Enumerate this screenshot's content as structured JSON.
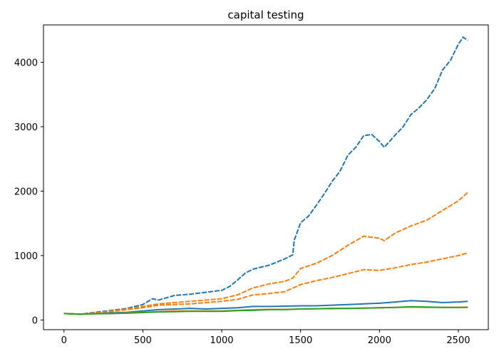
{
  "chart_data": {
    "type": "line",
    "title": "capital testing",
    "xlabel": "",
    "ylabel": "",
    "xlim": [
      -130,
      2690
    ],
    "ylim": [
      -150,
      4580
    ],
    "xticks": [
      0,
      500,
      1000,
      1500,
      2000,
      2500
    ],
    "yticks": [
      0,
      1000,
      2000,
      3000,
      4000
    ],
    "grid": false,
    "legend": "none",
    "series": [
      {
        "color": "#1f77b4",
        "style": "dashed",
        "points": [
          [
            0,
            100
          ],
          [
            100,
            90
          ],
          [
            200,
            120
          ],
          [
            300,
            150
          ],
          [
            400,
            180
          ],
          [
            500,
            240
          ],
          [
            560,
            330
          ],
          [
            600,
            310
          ],
          [
            700,
            380
          ],
          [
            800,
            400
          ],
          [
            900,
            430
          ],
          [
            1000,
            460
          ],
          [
            1050,
            520
          ],
          [
            1100,
            620
          ],
          [
            1150,
            730
          ],
          [
            1200,
            790
          ],
          [
            1300,
            850
          ],
          [
            1400,
            950
          ],
          [
            1450,
            1010
          ],
          [
            1460,
            1240
          ],
          [
            1500,
            1510
          ],
          [
            1550,
            1610
          ],
          [
            1600,
            1780
          ],
          [
            1650,
            1960
          ],
          [
            1700,
            2150
          ],
          [
            1750,
            2310
          ],
          [
            1800,
            2560
          ],
          [
            1850,
            2680
          ],
          [
            1900,
            2860
          ],
          [
            1950,
            2880
          ],
          [
            2000,
            2770
          ],
          [
            2030,
            2680
          ],
          [
            2100,
            2870
          ],
          [
            2150,
            3000
          ],
          [
            2200,
            3190
          ],
          [
            2250,
            3290
          ],
          [
            2300,
            3420
          ],
          [
            2350,
            3590
          ],
          [
            2400,
            3880
          ],
          [
            2450,
            4030
          ],
          [
            2500,
            4280
          ],
          [
            2530,
            4390
          ],
          [
            2560,
            4340
          ]
        ]
      },
      {
        "color": "#ff7f0e",
        "style": "dashed",
        "points": [
          [
            0,
            100
          ],
          [
            100,
            90
          ],
          [
            200,
            110
          ],
          [
            300,
            140
          ],
          [
            400,
            170
          ],
          [
            500,
            210
          ],
          [
            600,
            250
          ],
          [
            700,
            270
          ],
          [
            800,
            290
          ],
          [
            900,
            310
          ],
          [
            1000,
            330
          ],
          [
            1100,
            390
          ],
          [
            1200,
            500
          ],
          [
            1300,
            560
          ],
          [
            1400,
            600
          ],
          [
            1450,
            650
          ],
          [
            1500,
            800
          ],
          [
            1600,
            880
          ],
          [
            1700,
            1000
          ],
          [
            1800,
            1160
          ],
          [
            1900,
            1300
          ],
          [
            2000,
            1270
          ],
          [
            2030,
            1230
          ],
          [
            2100,
            1350
          ],
          [
            2200,
            1460
          ],
          [
            2300,
            1550
          ],
          [
            2400,
            1700
          ],
          [
            2500,
            1850
          ],
          [
            2560,
            1980
          ]
        ]
      },
      {
        "color": "#ff7f0e",
        "style": "dashed",
        "points": [
          [
            0,
            100
          ],
          [
            100,
            90
          ],
          [
            200,
            110
          ],
          [
            300,
            130
          ],
          [
            400,
            160
          ],
          [
            500,
            190
          ],
          [
            600,
            230
          ],
          [
            700,
            240
          ],
          [
            800,
            250
          ],
          [
            900,
            270
          ],
          [
            1000,
            290
          ],
          [
            1100,
            320
          ],
          [
            1200,
            390
          ],
          [
            1300,
            410
          ],
          [
            1400,
            440
          ],
          [
            1500,
            550
          ],
          [
            1600,
            610
          ],
          [
            1700,
            660
          ],
          [
            1800,
            720
          ],
          [
            1900,
            780
          ],
          [
            2000,
            770
          ],
          [
            2100,
            810
          ],
          [
            2200,
            860
          ],
          [
            2300,
            900
          ],
          [
            2400,
            950
          ],
          [
            2500,
            1000
          ],
          [
            2560,
            1040
          ]
        ]
      },
      {
        "color": "#1f77b4",
        "style": "solid",
        "points": [
          [
            0,
            100
          ],
          [
            100,
            90
          ],
          [
            200,
            100
          ],
          [
            300,
            110
          ],
          [
            400,
            120
          ],
          [
            500,
            140
          ],
          [
            600,
            160
          ],
          [
            700,
            170
          ],
          [
            800,
            180
          ],
          [
            900,
            170
          ],
          [
            1000,
            180
          ],
          [
            1100,
            190
          ],
          [
            1200,
            210
          ],
          [
            1300,
            210
          ],
          [
            1400,
            215
          ],
          [
            1500,
            220
          ],
          [
            1600,
            220
          ],
          [
            1700,
            230
          ],
          [
            1800,
            240
          ],
          [
            1900,
            250
          ],
          [
            2000,
            260
          ],
          [
            2100,
            280
          ],
          [
            2200,
            300
          ],
          [
            2300,
            290
          ],
          [
            2400,
            270
          ],
          [
            2500,
            280
          ],
          [
            2560,
            290
          ]
        ]
      },
      {
        "color": "#ff7f0e",
        "style": "solid",
        "points": [
          [
            0,
            100
          ],
          [
            100,
            90
          ],
          [
            200,
            100
          ],
          [
            300,
            100
          ],
          [
            400,
            110
          ],
          [
            500,
            120
          ],
          [
            600,
            130
          ],
          [
            700,
            140
          ],
          [
            800,
            140
          ],
          [
            900,
            140
          ],
          [
            1000,
            140
          ],
          [
            1100,
            150
          ],
          [
            1200,
            160
          ],
          [
            1300,
            165
          ],
          [
            1400,
            165
          ],
          [
            1500,
            170
          ],
          [
            1600,
            175
          ],
          [
            1700,
            175
          ],
          [
            1800,
            180
          ],
          [
            1900,
            185
          ],
          [
            2000,
            190
          ],
          [
            2100,
            195
          ],
          [
            2200,
            200
          ],
          [
            2300,
            195
          ],
          [
            2400,
            195
          ],
          [
            2500,
            195
          ],
          [
            2560,
            200
          ]
        ]
      },
      {
        "color": "#2ca02c",
        "style": "solid",
        "points": [
          [
            0,
            100
          ],
          [
            100,
            90
          ],
          [
            200,
            95
          ],
          [
            300,
            100
          ],
          [
            400,
            105
          ],
          [
            500,
            115
          ],
          [
            600,
            125
          ],
          [
            700,
            130
          ],
          [
            800,
            135
          ],
          [
            900,
            135
          ],
          [
            1000,
            135
          ],
          [
            1100,
            145
          ],
          [
            1200,
            150
          ],
          [
            1300,
            160
          ],
          [
            1400,
            160
          ],
          [
            1500,
            170
          ],
          [
            1600,
            175
          ],
          [
            1700,
            180
          ],
          [
            1800,
            180
          ],
          [
            1900,
            185
          ],
          [
            2000,
            190
          ],
          [
            2100,
            195
          ],
          [
            2200,
            205
          ],
          [
            2300,
            200
          ],
          [
            2400,
            195
          ],
          [
            2500,
            195
          ],
          [
            2560,
            195
          ]
        ]
      }
    ]
  }
}
